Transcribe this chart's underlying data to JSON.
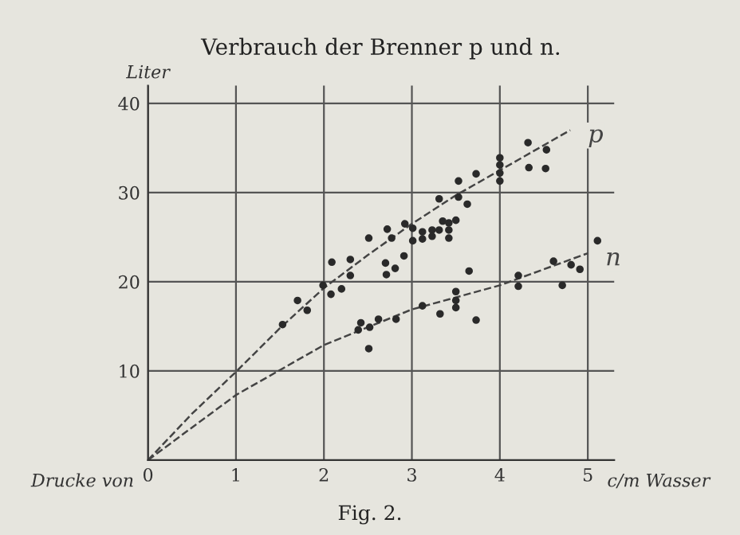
{
  "chart_data": {
    "type": "scatter",
    "title": "Verbrauch der Brenner p und n.",
    "ylabel": "Liter",
    "xlabel": "c/m Wasser",
    "annotations": [
      "Drucke von",
      "Fig. 2."
    ],
    "xlim": [
      0,
      5.3
    ],
    "ylim": [
      0,
      42
    ],
    "xticks": [
      0,
      1,
      2,
      3,
      4,
      5
    ],
    "yticks": [
      10,
      20,
      30,
      40
    ],
    "grid": true,
    "legend": false,
    "marker": "circle",
    "series": [
      {
        "color": "#2a2a2a",
        "x": [
          1.53,
          1.7,
          1.81,
          1.99,
          2.09,
          2.08,
          2.2,
          2.3,
          2.3,
          2.51,
          2.72,
          2.7,
          2.71,
          2.81,
          2.77,
          2.92,
          2.91,
          3.01,
          3.01,
          3.12,
          3.12,
          3.23,
          3.23,
          3.31,
          3.31,
          3.35,
          3.42,
          3.42,
          3.42,
          3.5,
          3.53,
          3.53,
          3.63,
          3.65,
          3.73,
          4.0,
          4.0,
          4.0,
          4.0,
          4.32,
          4.33,
          4.53,
          4.52
        ],
        "values": [
          15.2,
          17.9,
          16.8,
          19.6,
          22.2,
          18.6,
          19.2,
          22.5,
          20.7,
          24.9,
          25.9,
          22.1,
          20.8,
          21.5,
          24.9,
          26.5,
          22.9,
          26.0,
          24.6,
          24.8,
          25.6,
          25.8,
          25.1,
          29.3,
          25.8,
          26.8,
          25.8,
          24.9,
          26.6,
          26.9,
          31.3,
          29.5,
          28.7,
          21.2,
          32.1,
          33.9,
          33.1,
          32.2,
          31.3,
          35.6,
          32.8,
          34.8,
          32.7
        ]
      },
      {
        "color": "#2a2a2a",
        "x": [
          2.51,
          2.39,
          2.42,
          2.52,
          2.62,
          2.82,
          3.12,
          3.32,
          3.5,
          3.5,
          3.5,
          3.73,
          4.21,
          4.21,
          4.61,
          4.71,
          4.81,
          4.91,
          5.11
        ],
        "values": [
          12.5,
          14.6,
          15.4,
          14.9,
          15.8,
          15.8,
          17.3,
          16.4,
          18.9,
          17.9,
          17.1,
          15.7,
          20.7,
          19.5,
          22.3,
          19.6,
          21.9,
          21.4,
          24.6
        ]
      },
      {
        "type": "line",
        "name": "p",
        "color": "#444444",
        "line_style": "dashed",
        "marker": "none",
        "x": [
          0,
          0.5,
          1,
          1.5,
          2,
          2.5,
          3,
          3.5,
          4,
          4.8
        ],
        "values": [
          0,
          5.2,
          9.9,
          14.8,
          19.3,
          23,
          26.5,
          29.7,
          32.5,
          37
        ]
      },
      {
        "type": "line",
        "name": "n",
        "color": "#444444",
        "line_style": "dashed",
        "marker": "none",
        "x": [
          0,
          1,
          1.5,
          2,
          3,
          4,
          5.0
        ],
        "values": [
          0,
          7.3,
          10.1,
          12.9,
          16.9,
          19.6,
          23.2
        ]
      }
    ]
  }
}
